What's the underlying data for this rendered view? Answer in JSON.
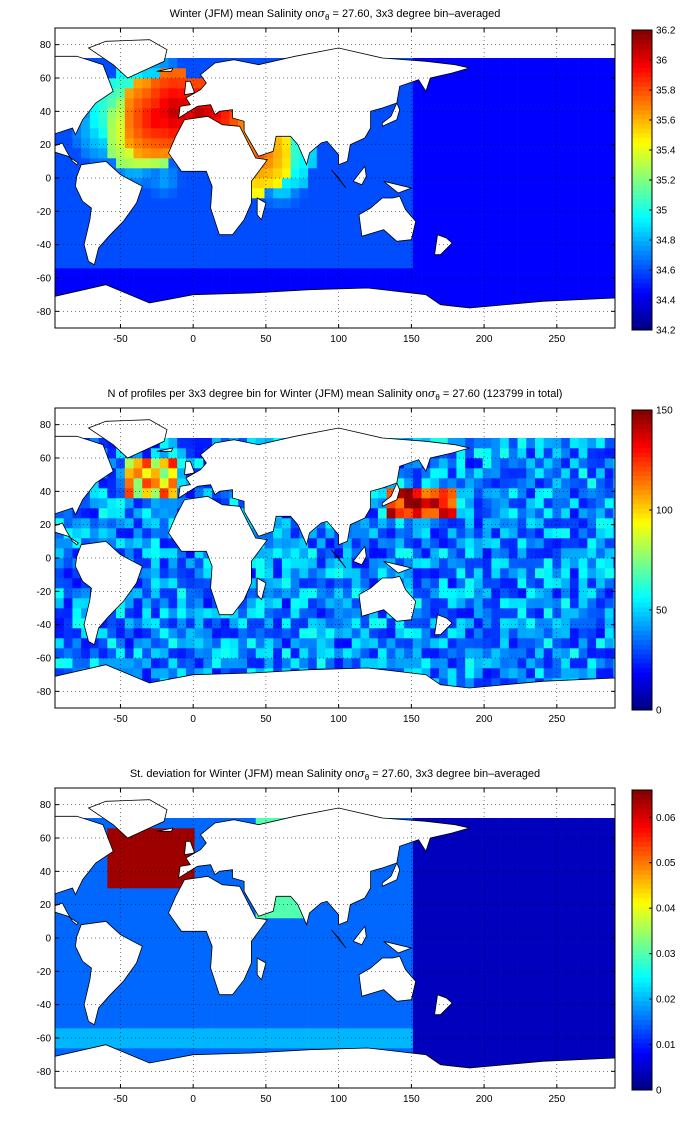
{
  "chart_data": [
    {
      "type": "heatmap",
      "title": {
        "pre": "Winter (JFM) mean Salinity on",
        "sym": "σ",
        "sub": "θ",
        "post": " = 27.60, 3x3 degree bin–averaged"
      },
      "xticks": [
        "-50",
        "0",
        "50",
        "100",
        "150",
        "200",
        "250"
      ],
      "yticks": [
        "80",
        "60",
        "40",
        "20",
        "0",
        "-20",
        "-40",
        "-60",
        "-80"
      ],
      "xlim": [
        -95,
        290
      ],
      "ylim": [
        -90,
        90
      ],
      "colorbar": {
        "min": 34.2,
        "max": 36.2,
        "ticks": [
          "36.2",
          "36",
          "35.8",
          "35.6",
          "35.4",
          "35.2",
          "35",
          "34.8",
          "34.6",
          "34.4",
          "34.2"
        ]
      },
      "colormap": "jet",
      "grid": true
    },
    {
      "type": "heatmap",
      "title": {
        "pre": "N of profiles per 3x3 degree bin for Winter (JFM) mean Salinity on",
        "sym": "σ",
        "sub": "θ",
        "post": " = 27.60 (123799 in total)"
      },
      "xticks": [
        "-50",
        "0",
        "50",
        "100",
        "150",
        "200",
        "250"
      ],
      "yticks": [
        "80",
        "60",
        "40",
        "20",
        "0",
        "-20",
        "-40",
        "-60",
        "-80"
      ],
      "xlim": [
        -95,
        290
      ],
      "ylim": [
        -90,
        90
      ],
      "colorbar": {
        "min": 0,
        "max": 150,
        "ticks": [
          "150",
          "100",
          "50",
          "0"
        ]
      },
      "colormap": "jet",
      "grid": true
    },
    {
      "type": "heatmap",
      "title": {
        "pre": "St. deviation for Winter (JFM) mean Salinity on",
        "sym": "σ",
        "sub": "θ",
        "post": " = 27.60, 3x3 degree bin–averaged"
      },
      "xticks": [
        "-50",
        "0",
        "50",
        "100",
        "150",
        "200",
        "250"
      ],
      "yticks": [
        "80",
        "60",
        "40",
        "20",
        "0",
        "-20",
        "-40",
        "-60",
        "-80"
      ],
      "xlim": [
        -95,
        290
      ],
      "ylim": [
        -90,
        90
      ],
      "colorbar": {
        "min": 0,
        "max": 0.066,
        "ticks": [
          "0.06",
          "0.05",
          "0.04",
          "0.03",
          "0.02",
          "0.01",
          "0"
        ]
      },
      "colormap": "jet",
      "grid": true
    }
  ]
}
